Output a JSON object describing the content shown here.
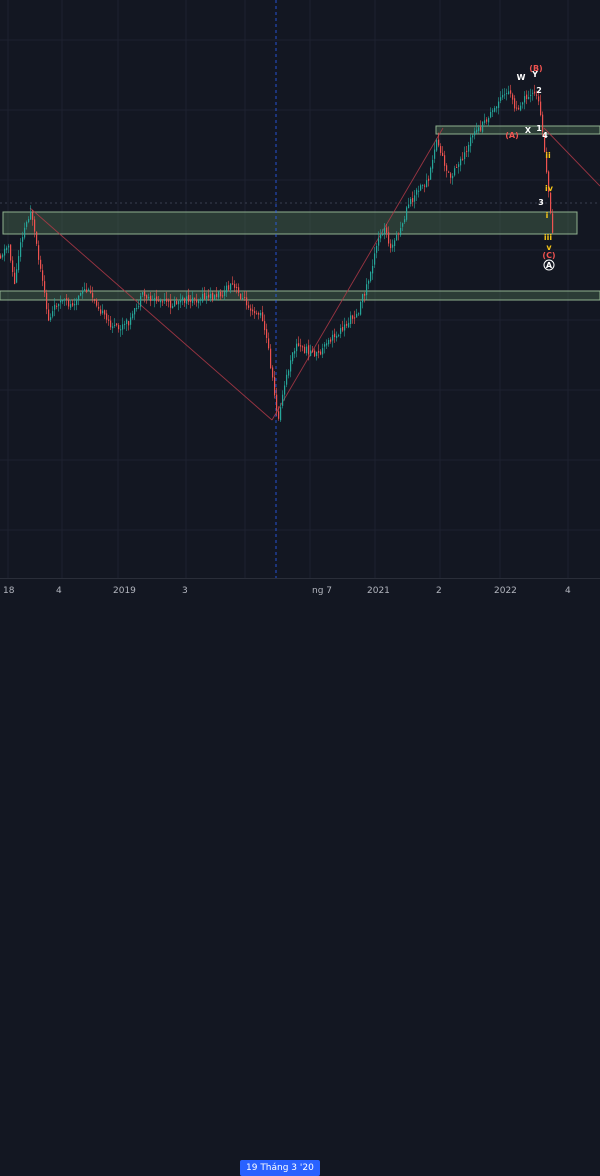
{
  "chart_data": {
    "type": "candlestick",
    "x_tick_labels": [
      "18",
      "4",
      "2019",
      "3",
      "19 Tháng 3 '20",
      "ng 7",
      "2021",
      "2",
      "2022",
      "4"
    ],
    "crosshair_label": "19 Tháng 3 '20",
    "grid": true,
    "colors": {
      "background": "#131722",
      "up": "#26a69a",
      "down": "#ef5350",
      "zone_fill": "#4a6b4f",
      "zone_border": "#8fb08f",
      "trendline": "#b23a48",
      "crosshair": "#2962ff",
      "wave_white": "#ffffff",
      "wave_yellow": "#f5c518",
      "wave_red": "#ef5350"
    },
    "wave_labels": [
      {
        "text": "W",
        "color": "white"
      },
      {
        "text": "Y",
        "color": "white"
      },
      {
        "text": "(B)",
        "color": "red"
      },
      {
        "text": "2",
        "color": "white"
      },
      {
        "text": "(A)",
        "color": "red"
      },
      {
        "text": "X",
        "color": "white"
      },
      {
        "text": "1",
        "color": "white"
      },
      {
        "text": "4",
        "color": "white"
      },
      {
        "text": "ii",
        "color": "yellow"
      },
      {
        "text": "iv",
        "color": "yellow"
      },
      {
        "text": "3",
        "color": "white"
      },
      {
        "text": "i",
        "color": "yellow"
      },
      {
        "text": "iii",
        "color": "yellow"
      },
      {
        "text": "v",
        "color": "yellow"
      },
      {
        "text": "(C)",
        "color": "red"
      },
      {
        "text": "A",
        "color": "white",
        "circled": true
      }
    ]
  }
}
